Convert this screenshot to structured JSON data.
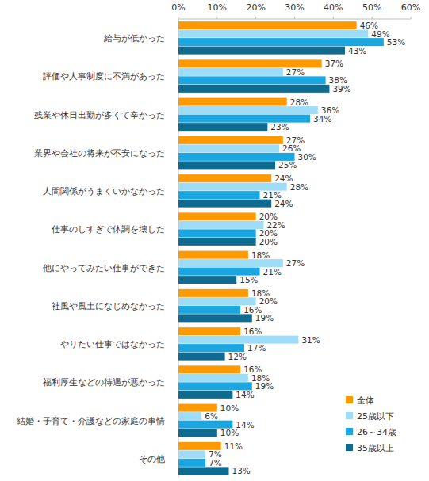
{
  "chart_data": {
    "type": "bar",
    "orientation": "horizontal",
    "grid": false,
    "data_labels": true,
    "legend": "lower right",
    "categories": [
      "給与が低かった",
      "評価や人事制度に不満があった",
      "残業や休日出勤が多くて辛かった",
      "業界や会社の将来が不安になった",
      "人間関係がうまくいかなかった",
      "仕事のしすぎで体調を壊した",
      "他にやってみたい仕事ができた",
      "社風や風土になじめなかった",
      "やりたい仕事ではなかった",
      "福利厚生などの待遇が悪かった",
      "結婚・子育て・介護などの家庭の事情",
      "その他"
    ],
    "xlim": [
      0,
      60
    ],
    "xticks": [
      {
        "value": 0,
        "label": "0%"
      },
      {
        "value": 10,
        "label": "10%"
      },
      {
        "value": 20,
        "label": "20%"
      },
      {
        "value": 30,
        "label": "30%"
      },
      {
        "value": 40,
        "label": "40%"
      },
      {
        "value": 50,
        "label": "50%"
      },
      {
        "value": 60,
        "label": "60%"
      }
    ],
    "series": [
      {
        "name": "全体",
        "color": "#ff9900",
        "values": [
          46,
          37,
          28,
          27,
          24,
          20,
          18,
          18,
          16,
          16,
          10,
          11
        ],
        "value_labels": [
          "46%",
          "37%",
          "28%",
          "27%",
          "24%",
          "20%",
          "18%",
          "18%",
          "16%",
          "16%",
          "10%",
          "11%"
        ]
      },
      {
        "name": "25歳以下",
        "color": "#9edcf7",
        "values": [
          49,
          27,
          36,
          26,
          28,
          22,
          27,
          20,
          31,
          18,
          6,
          7
        ],
        "value_labels": [
          "49%",
          "27%",
          "36%",
          "26%",
          "28%",
          "22%",
          "27%",
          "20%",
          "31%",
          "18%",
          "6%",
          "7%"
        ]
      },
      {
        "name": "26～34歳",
        "color": "#1aa6e0",
        "values": [
          53,
          38,
          34,
          30,
          21,
          20,
          21,
          16,
          17,
          19,
          14,
          7
        ],
        "value_labels": [
          "53%",
          "38%",
          "34%",
          "30%",
          "21%",
          "20%",
          "21%",
          "16%",
          "17%",
          "19%",
          "14%",
          "7%"
        ]
      },
      {
        "name": "35歳以上",
        "color": "#0f6b8f",
        "values": [
          43,
          39,
          23,
          25,
          24,
          20,
          15,
          19,
          12,
          14,
          10,
          13
        ],
        "value_labels": [
          "43%",
          "39%",
          "23%",
          "25%",
          "24%",
          "20%",
          "15%",
          "19%",
          "12%",
          "14%",
          "10%",
          "13%"
        ]
      }
    ]
  }
}
